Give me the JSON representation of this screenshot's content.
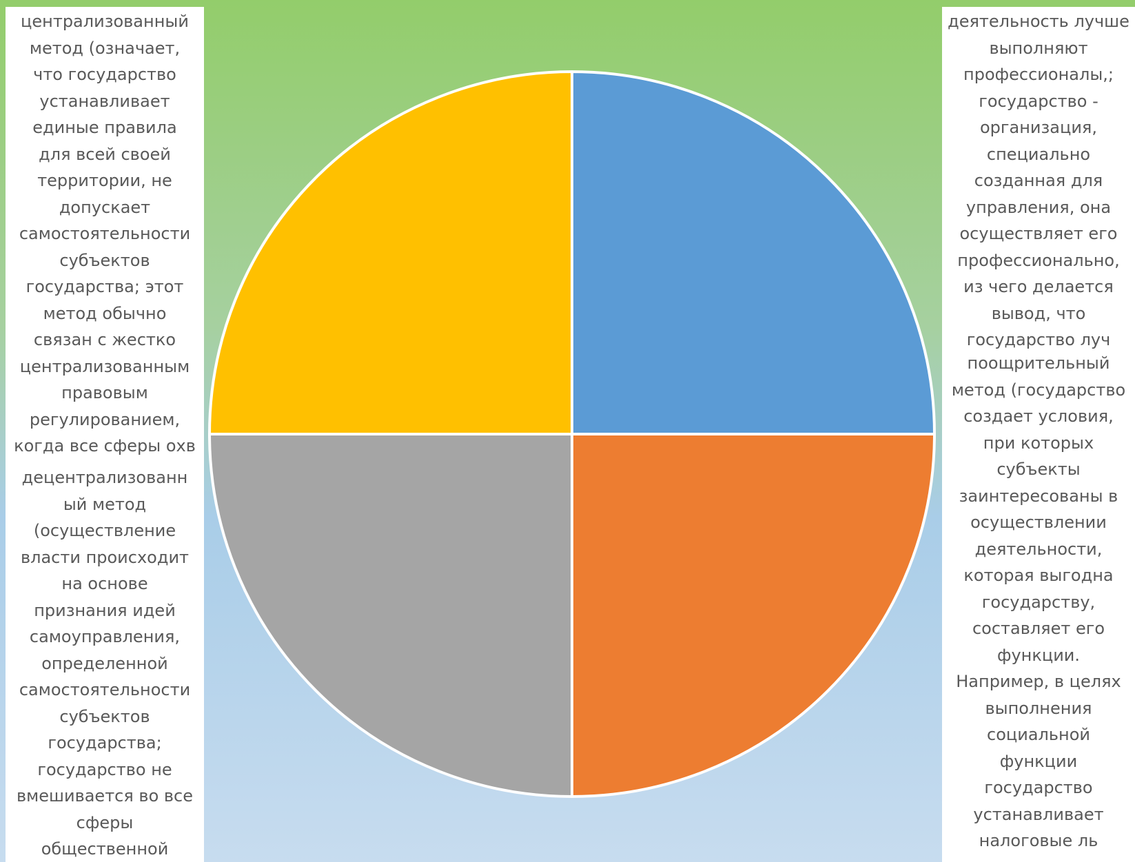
{
  "colors": {
    "segment_top_right": "#5b9bd5",
    "segment_bottom_right": "#ed7d31",
    "segment_bottom_left": "#a5a5a5",
    "segment_top_left": "#ffc000",
    "text": "#595959",
    "divider": "#ffffff"
  },
  "chart_data": {
    "type": "pie",
    "values": [
      25,
      25,
      25,
      25
    ],
    "order": [
      "top-right",
      "bottom-right",
      "bottom-left",
      "top-left"
    ],
    "labels_printed": false
  },
  "textboxes": {
    "top_left": {
      "lines": [
        "централизованный",
        "метод (означает,",
        "что государство",
        "устанавливает",
        "единые правила",
        "для всей своей",
        "территории, не",
        "допускает",
        "самостоятельности",
        "субъектов",
        "государства; этот",
        "метод обычно",
        "связан с жестко",
        "централизованным",
        "правовым",
        "регулированием,",
        "когда все сферы охв"
      ]
    },
    "bottom_left": {
      "lines": [
        "децентрализованн",
        "ый метод",
        "(осуществление",
        "власти происходит",
        "на основе",
        "признания идей",
        "самоуправления,",
        "определенной",
        "самостоятельности",
        "субъектов",
        "государства;",
        "государство не",
        "вмешивается во все",
        "сферы",
        "общественной"
      ]
    },
    "top_right": {
      "lines": [
        "деятельность лучше",
        "выполняют",
        "профессионалы,;",
        "государство -",
        "организация,",
        "специально",
        "созданная для",
        "управления, она",
        "осуществляет его",
        "профессионально,",
        "из чего делается",
        "вывод, что",
        "государство луч"
      ]
    },
    "bottom_right": {
      "lines": [
        "поощрительный",
        "метод (государство",
        "создает условия,",
        "при которых",
        "субъекты",
        "заинтересованы в",
        "осуществлении",
        "деятельности,",
        "которая выгодна",
        "государству,",
        "составляет его",
        "функции.",
        "Например, в целях",
        "выполнения",
        "социальной",
        "функции",
        "государство",
        "устанавливает",
        "налоговые ль"
      ]
    }
  }
}
